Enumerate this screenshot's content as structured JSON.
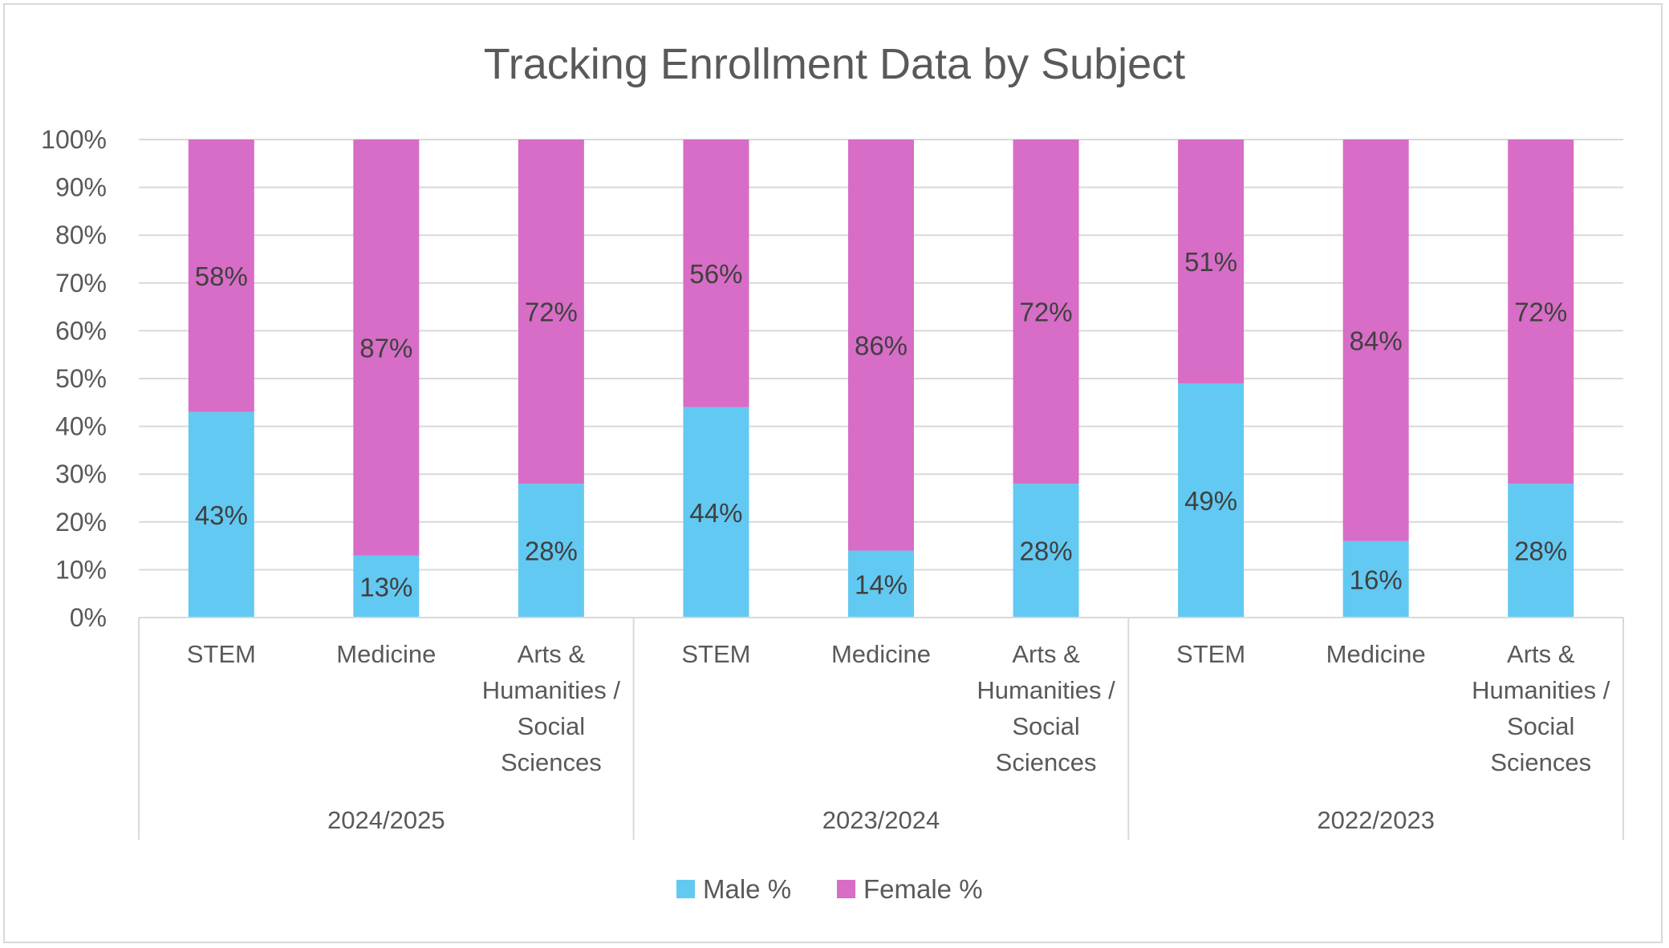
{
  "chart_data": {
    "type": "bar",
    "stacked": true,
    "percent_stacked": true,
    "title": "Tracking Enrollment Data by Subject",
    "xlabel": "",
    "ylabel": "",
    "ylim": [
      0,
      100
    ],
    "y_ticks": [
      "0%",
      "10%",
      "20%",
      "30%",
      "40%",
      "50%",
      "60%",
      "70%",
      "80%",
      "90%",
      "100%"
    ],
    "grid": true,
    "legend_position": "bottom",
    "groups": [
      {
        "label": "2024/2025",
        "categories": [
          "STEM",
          "Medicine",
          "Arts & Humanities / Social Sciences"
        ]
      },
      {
        "label": "2023/2024",
        "categories": [
          "STEM",
          "Medicine",
          "Arts & Humanities / Social Sciences"
        ]
      },
      {
        "label": "2022/2023",
        "categories": [
          "STEM",
          "Medicine",
          "Arts & Humanities / Social Sciences"
        ]
      }
    ],
    "category_label_lines": {
      "STEM": [
        "STEM"
      ],
      "Medicine": [
        "Medicine"
      ],
      "Arts & Humanities / Social Sciences": [
        "Arts &",
        "Humanities /",
        "Social",
        "Sciences"
      ]
    },
    "series": [
      {
        "name": "Male %",
        "color": "#62c9f2",
        "values": [
          43,
          13,
          28,
          44,
          14,
          28,
          49,
          16,
          28
        ],
        "labels": [
          "43%",
          "13%",
          "28%",
          "44%",
          "14%",
          "28%",
          "49%",
          "16%",
          "28%"
        ]
      },
      {
        "name": "Female %",
        "color": "#d76dc6",
        "values": [
          58,
          87,
          72,
          56,
          86,
          72,
          51,
          84,
          72
        ],
        "labels": [
          "58%",
          "87%",
          "72%",
          "56%",
          "86%",
          "72%",
          "51%",
          "84%",
          "72%"
        ]
      }
    ]
  }
}
